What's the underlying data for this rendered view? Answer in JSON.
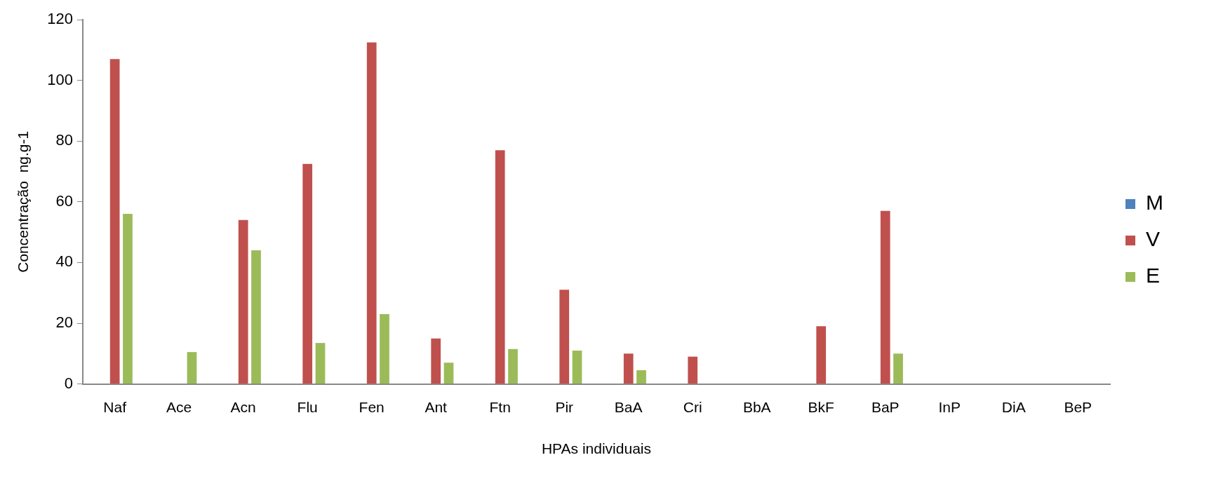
{
  "chart_data": {
    "type": "bar",
    "xlabel": "HPAs individuais",
    "ylabel": "Concentração  ng.g-1",
    "categories": [
      "Naf",
      "Ace",
      "Acn",
      "Flu",
      "Fen",
      "Ant",
      "Ftn",
      "Pir",
      "BaA",
      "Cri",
      "BbA",
      "BkF",
      "BaP",
      "InP",
      "DiA",
      "BeP"
    ],
    "series": [
      {
        "name": "M",
        "color": "#4f81bd",
        "values": [
          0,
          0,
          0,
          0,
          0,
          0,
          0,
          0,
          0,
          0,
          0,
          0,
          0,
          0,
          0,
          0
        ]
      },
      {
        "name": "V",
        "color": "#c0504d",
        "values": [
          107,
          0,
          54,
          72.5,
          112.5,
          15,
          77,
          31,
          10,
          9,
          0,
          19,
          57,
          0,
          0,
          0
        ]
      },
      {
        "name": "E",
        "color": "#9bbb59",
        "values": [
          56,
          10.5,
          44,
          13.5,
          23,
          7,
          11.5,
          11,
          4.5,
          0,
          0,
          0,
          10,
          0,
          0,
          0
        ]
      }
    ],
    "ylim": [
      0,
      120
    ],
    "yticks": [
      0,
      20,
      40,
      60,
      80,
      100,
      120
    ],
    "grid": false,
    "legend": "right"
  }
}
